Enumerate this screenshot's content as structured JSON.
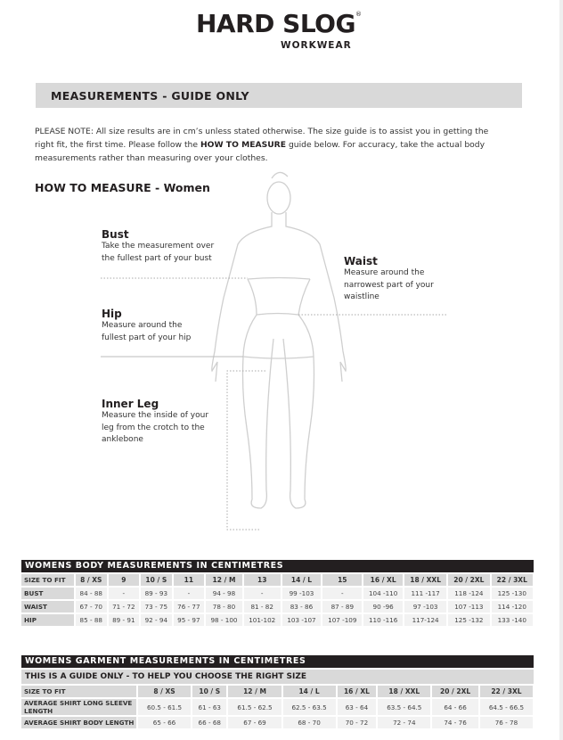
{
  "logo": {
    "brand": "HARD SLOG",
    "registered": "®",
    "sub": "WORKWEAR"
  },
  "header": {
    "title": "MEASUREMENTS - GUIDE ONLY"
  },
  "note": {
    "prefix": "PLEASE NOTE:  All size results are in cm’s unless stated otherwise. The size guide is to assist you in getting the right fit, the first time. Please follow the ",
    "bold": "HOW TO MEASURE",
    "suffix": " guide below. For accuracy, take the actual body measurements rather than measuring over your clothes."
  },
  "how_to": {
    "title": "HOW TO MEASURE - Women",
    "bust": {
      "heading": "Bust",
      "lines": [
        "Take the measurement over",
        "the fullest part of your bust"
      ]
    },
    "waist": {
      "heading": "Waist",
      "lines": [
        "Measure around the",
        "narrowest part of your",
        "waistline"
      ]
    },
    "hip": {
      "heading": "Hip",
      "lines": [
        "Measure around the",
        "fullest part of your hip"
      ]
    },
    "inner_leg": {
      "heading": "Inner Leg",
      "lines": [
        "Measure the inside of your",
        "leg from the crotch to the",
        "anklebone"
      ]
    }
  },
  "body_table": {
    "title": "WOMENS BODY MEASUREMENTS IN CENTIMETRES",
    "header": [
      "SIZE TO FIT",
      "8 / XS",
      "9",
      "10 / S",
      "11",
      "12 / M",
      "13",
      "14 / L",
      "15",
      "16 / XL",
      "18 / XXL",
      "20 / 2XL",
      "22 / 3XL"
    ],
    "rows": [
      [
        "BUST",
        "84 - 88",
        "-",
        "89 - 93",
        "-",
        "94 - 98",
        "-",
        "99 -103",
        "-",
        "104 -110",
        "111 -117",
        "118 -124",
        "125 -130"
      ],
      [
        "WAIST",
        "67 - 70",
        "71 - 72",
        "73 - 75",
        "76 - 77",
        "78 - 80",
        "81 - 82",
        "83 - 86",
        "87 - 89",
        "90 -96",
        "97 -103",
        "107 -113",
        "114 -120"
      ],
      [
        "HIP",
        "85 - 88",
        "89 - 91",
        "92 - 94",
        "95 - 97",
        "98 - 100",
        "101-102",
        "103 -107",
        "107 -109",
        "110 -116",
        "117-124",
        "125 -132",
        "133 -140"
      ]
    ]
  },
  "garment_table": {
    "title": "WOMENS GARMENT MEASUREMENTS IN CENTIMETRES",
    "subtitle": "THIS IS A GUIDE ONLY - TO HELP YOU CHOOSE THE RIGHT SIZE",
    "header": [
      "SIZE TO FIT",
      "8 / XS",
      "10 / S",
      "12 / M",
      "14 / L",
      "16 / XL",
      "18 / XXL",
      "20 / 2XL",
      "22 / 3XL"
    ],
    "rows": [
      [
        "AVERAGE SHIRT LONG SLEEVE LENGTH",
        "60.5 - 61.5",
        "61 - 63",
        "61.5 - 62.5",
        "62.5 - 63.5",
        "63 - 64",
        "63.5 - 64.5",
        "64 - 66",
        "64.5 - 66.5"
      ],
      [
        "AVERAGE SHIRT BODY LENGTH",
        "65 - 66",
        "66 - 68",
        "67 - 69",
        "68 - 70",
        "70 - 72",
        "72 - 74",
        "74 - 76",
        "76 - 78"
      ]
    ]
  },
  "colors": {
    "black_bar": "#231f20",
    "gray_band": "#d9d9d9",
    "cell": "#f2f2f2",
    "figure_line": "#cfcfcf"
  }
}
